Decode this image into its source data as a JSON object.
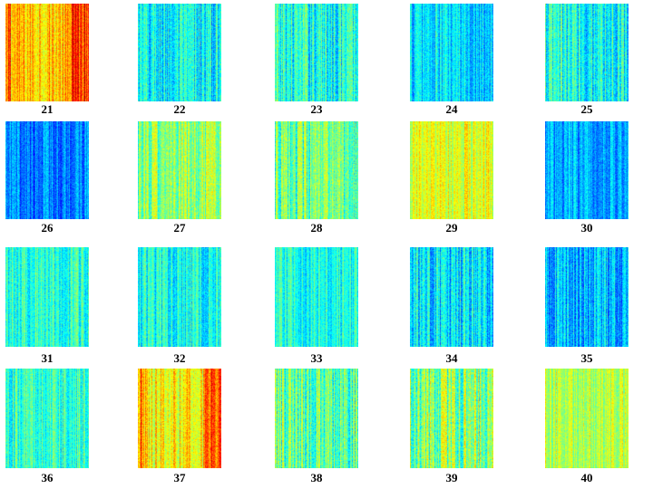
{
  "panels": [
    {
      "label": "21",
      "base": 0.68,
      "contrast": 0.1,
      "hot_columns": true
    },
    {
      "label": "22",
      "base": 0.36,
      "contrast": 0.12,
      "hot_columns": false
    },
    {
      "label": "23",
      "base": 0.4,
      "contrast": 0.12,
      "hot_columns": false
    },
    {
      "label": "24",
      "base": 0.34,
      "contrast": 0.1,
      "hot_columns": false
    },
    {
      "label": "25",
      "base": 0.39,
      "contrast": 0.12,
      "hot_columns": false
    },
    {
      "label": "26",
      "base": 0.25,
      "contrast": 0.09,
      "hot_columns": false
    },
    {
      "label": "27",
      "base": 0.5,
      "contrast": 0.12,
      "hot_columns": false
    },
    {
      "label": "28",
      "base": 0.47,
      "contrast": 0.12,
      "hot_columns": false
    },
    {
      "label": "29",
      "base": 0.59,
      "contrast": 0.09,
      "hot_columns": false
    },
    {
      "label": "30",
      "base": 0.29,
      "contrast": 0.09,
      "hot_columns": false
    },
    {
      "label": "31",
      "base": 0.42,
      "contrast": 0.1,
      "hot_columns": false
    },
    {
      "label": "32",
      "base": 0.39,
      "contrast": 0.1,
      "hot_columns": false
    },
    {
      "label": "33",
      "base": 0.4,
      "contrast": 0.09,
      "hot_columns": false
    },
    {
      "label": "34",
      "base": 0.34,
      "contrast": 0.12,
      "hot_columns": false
    },
    {
      "label": "35",
      "base": 0.3,
      "contrast": 0.11,
      "hot_columns": false
    },
    {
      "label": "36",
      "base": 0.43,
      "contrast": 0.1,
      "hot_columns": false
    },
    {
      "label": "37",
      "base": 0.64,
      "contrast": 0.11,
      "hot_columns": true
    },
    {
      "label": "38",
      "base": 0.47,
      "contrast": 0.13,
      "hot_columns": false
    },
    {
      "label": "39",
      "base": 0.5,
      "contrast": 0.14,
      "hot_columns": false
    },
    {
      "label": "40",
      "base": 0.56,
      "contrast": 0.09,
      "hot_columns": false
    }
  ],
  "colormap": "jet"
}
